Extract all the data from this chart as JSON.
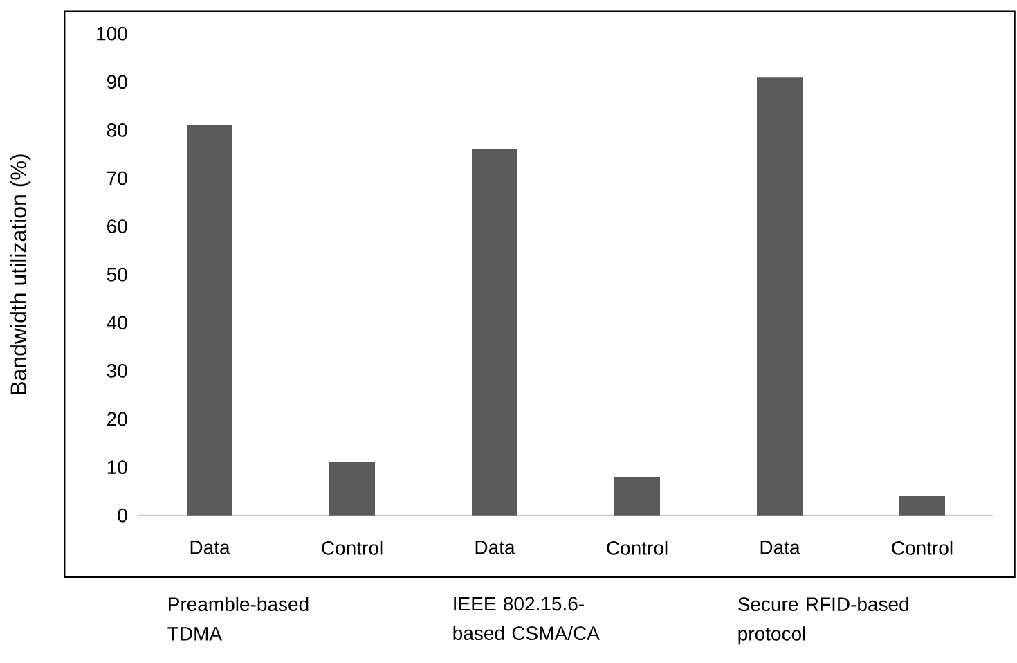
{
  "chart_data": {
    "type": "bar",
    "ylabel": "Bandwidth utilization (%)",
    "categories": [
      "Data",
      "Control",
      "Data",
      "Control",
      "Data",
      "Control"
    ],
    "values": [
      81,
      11,
      76,
      8,
      91,
      4
    ],
    "color": "#5a5a5a",
    "ylim": [
      0,
      100
    ],
    "yticks": [
      0,
      10,
      20,
      30,
      40,
      50,
      60,
      70,
      80,
      90,
      100
    ],
    "grid": false,
    "annotations": [
      "Preamble-based TDMA",
      "IEEE 802.15.6-based CSMA/CA",
      "Secure RFID-based protocol"
    ]
  }
}
